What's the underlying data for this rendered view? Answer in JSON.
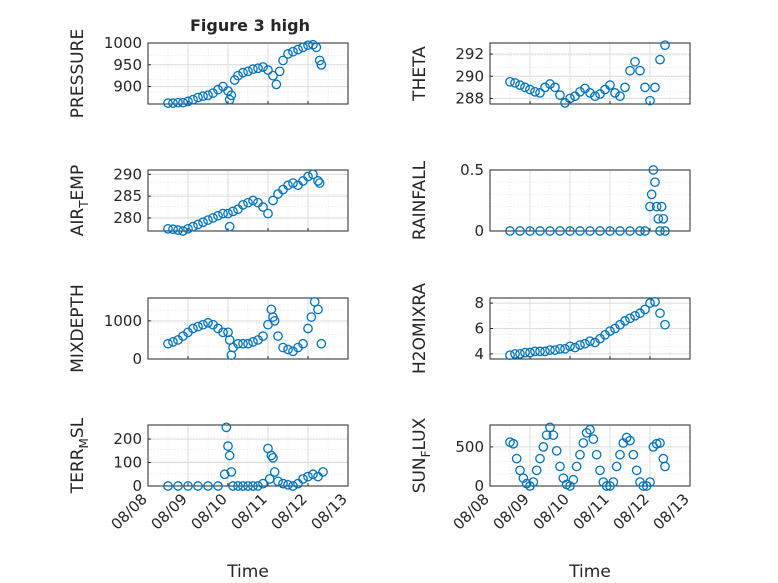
{
  "figure": {
    "title": "Figure 3 high"
  },
  "colors": {
    "marker": "#0072BD",
    "axis": "#262626",
    "grid": "#dcdcdc"
  },
  "chart_data": [
    {
      "id": "pressure",
      "type": "scatter",
      "title": "Figure 3 high",
      "xlabel": "",
      "ylabel": "PRESSURE",
      "xlim": [
        "08/08",
        "08/13"
      ],
      "ylim": [
        860,
        1000
      ],
      "yticks": [
        900,
        950,
        1000
      ],
      "xticks": [
        "08/08",
        "08/09",
        "08/10",
        "08/11",
        "08/12",
        "08/13"
      ],
      "show_xticklabels": false,
      "grid": true,
      "series": [
        {
          "x": [
            "08/08 12:00",
            "08/08 15:00",
            "08/08 18:00",
            "08/08 21:00",
            "08/09 00:00",
            "08/09 03:00",
            "08/09 06:00",
            "08/09 09:00",
            "08/09 12:00",
            "08/09 15:00",
            "08/09 18:00",
            "08/09 21:00",
            "08/10 00:00",
            "08/10 01:00",
            "08/10 02:00",
            "08/10 04:00",
            "08/10 06:00",
            "08/10 09:00",
            "08/10 12:00",
            "08/10 15:00",
            "08/10 18:00",
            "08/10 21:00",
            "08/11 00:00",
            "08/11 03:00",
            "08/11 05:00",
            "08/11 07:00",
            "08/11 09:00",
            "08/11 12:00",
            "08/11 15:00",
            "08/11 18:00",
            "08/11 21:00",
            "08/12 00:00",
            "08/12 03:00",
            "08/12 05:00",
            "08/12 07:00",
            "08/12 08:00"
          ],
          "y": [
            862,
            862,
            863,
            863,
            866,
            870,
            875,
            878,
            880,
            885,
            893,
            900,
            890,
            870,
            880,
            915,
            925,
            932,
            935,
            940,
            942,
            945,
            938,
            925,
            905,
            935,
            960,
            975,
            980,
            985,
            990,
            995,
            996,
            990,
            960,
            950
          ]
        }
      ]
    },
    {
      "id": "theta",
      "type": "scatter",
      "title": "",
      "xlabel": "",
      "ylabel": "THETA",
      "xlim": [
        "08/08",
        "08/13"
      ],
      "ylim": [
        287.5,
        293
      ],
      "yticks": [
        288,
        290,
        292
      ],
      "xticks": [
        "08/08",
        "08/09",
        "08/10",
        "08/11",
        "08/12",
        "08/13"
      ],
      "show_xticklabels": false,
      "grid": true,
      "series": [
        {
          "x": [
            "08/08 12:00",
            "08/08 15:00",
            "08/08 18:00",
            "08/08 21:00",
            "08/09 00:00",
            "08/09 03:00",
            "08/09 06:00",
            "08/09 09:00",
            "08/09 12:00",
            "08/09 15:00",
            "08/09 18:00",
            "08/09 21:00",
            "08/10 00:00",
            "08/10 03:00",
            "08/10 06:00",
            "08/10 09:00",
            "08/10 12:00",
            "08/10 15:00",
            "08/10 18:00",
            "08/10 21:00",
            "08/11 00:00",
            "08/11 03:00",
            "08/11 06:00",
            "08/11 09:00",
            "08/11 12:00",
            "08/11 15:00",
            "08/11 18:00",
            "08/11 21:00",
            "08/12 00:00",
            "08/12 03:00",
            "08/12 06:00",
            "08/12 09:00"
          ],
          "y": [
            289.5,
            289.4,
            289.2,
            289.0,
            288.8,
            288.6,
            288.5,
            289.0,
            289.3,
            289.0,
            288.3,
            287.6,
            288.0,
            288.2,
            288.6,
            288.9,
            288.5,
            288.2,
            288.4,
            288.8,
            289.2,
            288.5,
            288.2,
            289.0,
            290.5,
            291.3,
            290.5,
            289.0,
            287.8,
            289.0,
            291.5,
            292.8
          ]
        }
      ]
    },
    {
      "id": "air_temp",
      "type": "scatter",
      "title": "",
      "xlabel": "",
      "ylabel": "AIR_TEMP",
      "ylabel_display": [
        "AIR",
        "T",
        "EMP"
      ],
      "xlim": [
        "08/08",
        "08/13"
      ],
      "ylim": [
        277,
        291
      ],
      "yticks": [
        280,
        285,
        290
      ],
      "xticks": [
        "08/08",
        "08/09",
        "08/10",
        "08/11",
        "08/12",
        "08/13"
      ],
      "show_xticklabels": false,
      "grid": true,
      "series": [
        {
          "x": [
            "08/08 12:00",
            "08/08 15:00",
            "08/08 18:00",
            "08/08 21:00",
            "08/09 00:00",
            "08/09 03:00",
            "08/09 06:00",
            "08/09 09:00",
            "08/09 12:00",
            "08/09 15:00",
            "08/09 18:00",
            "08/09 21:00",
            "08/10 00:00",
            "08/10 01:00",
            "08/10 03:00",
            "08/10 06:00",
            "08/10 09:00",
            "08/10 12:00",
            "08/10 15:00",
            "08/10 18:00",
            "08/10 21:00",
            "08/11 00:00",
            "08/11 03:00",
            "08/11 06:00",
            "08/11 09:00",
            "08/11 12:00",
            "08/11 15:00",
            "08/11 18:00",
            "08/11 21:00",
            "08/12 00:00",
            "08/12 03:00",
            "08/12 06:00",
            "08/12 07:00"
          ],
          "y": [
            277.5,
            277.4,
            277.2,
            277.0,
            277.5,
            278.0,
            278.5,
            279.0,
            279.5,
            280.0,
            280.5,
            281.0,
            281.0,
            278.0,
            281.5,
            282.0,
            283.0,
            283.5,
            284.0,
            283.5,
            282.5,
            281.0,
            284.0,
            285.5,
            286.5,
            287.5,
            288.0,
            287.5,
            288.5,
            289.5,
            290.0,
            288.5,
            288.0
          ]
        }
      ]
    },
    {
      "id": "rainfall",
      "type": "scatter",
      "title": "",
      "xlabel": "",
      "ylabel": "RAINFALL",
      "xlim": [
        "08/08",
        "08/13"
      ],
      "ylim": [
        0,
        0.5
      ],
      "yticks": [
        0,
        0.5
      ],
      "xticks": [
        "08/08",
        "08/09",
        "08/10",
        "08/11",
        "08/12",
        "08/13"
      ],
      "show_xticklabels": false,
      "grid": true,
      "series": [
        {
          "x": [
            "08/08 12:00",
            "08/08 18:00",
            "08/09 00:00",
            "08/09 06:00",
            "08/09 12:00",
            "08/09 18:00",
            "08/10 00:00",
            "08/10 06:00",
            "08/10 12:00",
            "08/10 18:00",
            "08/11 00:00",
            "08/11 06:00",
            "08/11 12:00",
            "08/11 18:00",
            "08/11 21:00",
            "08/12 00:00",
            "08/12 01:00",
            "08/12 02:00",
            "08/12 03:00",
            "08/12 04:00",
            "08/12 05:00",
            "08/12 06:00",
            "08/12 07:00",
            "08/12 08:00",
            "08/12 09:00"
          ],
          "y": [
            0,
            0,
            0,
            0,
            0,
            0,
            0,
            0,
            0,
            0,
            0,
            0,
            0,
            0,
            0,
            0.2,
            0.3,
            0.5,
            0.4,
            0.2,
            0.1,
            0,
            0.2,
            0.1,
            0
          ]
        }
      ]
    },
    {
      "id": "mixdepth",
      "type": "scatter",
      "title": "",
      "xlabel": "",
      "ylabel": "MIXDEPTH",
      "xlim": [
        "08/08",
        "08/13"
      ],
      "ylim": [
        0,
        1600
      ],
      "yticks": [
        0,
        1000
      ],
      "xticks": [
        "08/08",
        "08/09",
        "08/10",
        "08/11",
        "08/12",
        "08/13"
      ],
      "show_xticklabels": false,
      "grid": true,
      "series": [
        {
          "x": [
            "08/08 12:00",
            "08/08 15:00",
            "08/08 18:00",
            "08/08 21:00",
            "08/09 00:00",
            "08/09 03:00",
            "08/09 06:00",
            "08/09 09:00",
            "08/09 12:00",
            "08/09 15:00",
            "08/09 18:00",
            "08/09 21:00",
            "08/10 00:00",
            "08/10 01:00",
            "08/10 02:00",
            "08/10 03:00",
            "08/10 06:00",
            "08/10 09:00",
            "08/10 12:00",
            "08/10 15:00",
            "08/10 18:00",
            "08/10 21:00",
            "08/11 00:00",
            "08/11 02:00",
            "08/11 03:00",
            "08/11 04:00",
            "08/11 06:00",
            "08/11 09:00",
            "08/11 12:00",
            "08/11 15:00",
            "08/11 18:00",
            "08/11 21:00",
            "08/12 00:00",
            "08/12 02:00",
            "08/12 04:00",
            "08/12 06:00",
            "08/12 08:00"
          ],
          "y": [
            400,
            450,
            500,
            600,
            700,
            800,
            850,
            900,
            950,
            900,
            800,
            700,
            700,
            500,
            100,
            300,
            400,
            400,
            400,
            450,
            500,
            600,
            900,
            1300,
            1100,
            1000,
            600,
            300,
            250,
            200,
            300,
            400,
            800,
            1100,
            1500,
            1300,
            400
          ]
        }
      ]
    },
    {
      "id": "h2omixra",
      "type": "scatter",
      "title": "",
      "xlabel": "",
      "ylabel": "H2OMIXRA",
      "xlim": [
        "08/08",
        "08/13"
      ],
      "ylim": [
        3.6,
        8.4
      ],
      "yticks": [
        4,
        6,
        8
      ],
      "xticks": [
        "08/08",
        "08/09",
        "08/10",
        "08/11",
        "08/12",
        "08/13"
      ],
      "show_xticklabels": false,
      "grid": true,
      "series": [
        {
          "x": [
            "08/08 12:00",
            "08/08 15:00",
            "08/08 18:00",
            "08/08 21:00",
            "08/09 00:00",
            "08/09 03:00",
            "08/09 06:00",
            "08/09 09:00",
            "08/09 12:00",
            "08/09 15:00",
            "08/09 18:00",
            "08/09 21:00",
            "08/10 00:00",
            "08/10 03:00",
            "08/10 06:00",
            "08/10 09:00",
            "08/10 12:00",
            "08/10 15:00",
            "08/10 18:00",
            "08/10 21:00",
            "08/11 00:00",
            "08/11 03:00",
            "08/11 06:00",
            "08/11 09:00",
            "08/11 12:00",
            "08/11 15:00",
            "08/11 18:00",
            "08/11 21:00",
            "08/12 00:00",
            "08/12 03:00",
            "08/12 06:00",
            "08/12 09:00"
          ],
          "y": [
            3.9,
            4.0,
            4.0,
            4.1,
            4.1,
            4.2,
            4.2,
            4.2,
            4.3,
            4.3,
            4.4,
            4.4,
            4.6,
            4.5,
            4.7,
            4.8,
            5.0,
            4.9,
            5.2,
            5.5,
            5.8,
            6.0,
            6.3,
            6.6,
            6.8,
            7.0,
            7.2,
            7.5,
            8.0,
            8.1,
            7.2,
            6.3
          ]
        }
      ]
    },
    {
      "id": "terr_msl",
      "type": "scatter",
      "title": "",
      "xlabel": "Time",
      "ylabel": "TERR_MSL",
      "ylabel_display": [
        "TERR",
        "M",
        "SL"
      ],
      "xlim": [
        "08/08",
        "08/13"
      ],
      "ylim": [
        0,
        260
      ],
      "yticks": [
        0,
        100,
        200
      ],
      "xticks": [
        "08/08",
        "08/09",
        "08/10",
        "08/11",
        "08/12",
        "08/13"
      ],
      "show_xticklabels": true,
      "grid": true,
      "series": [
        {
          "x": [
            "08/08 12:00",
            "08/08 18:00",
            "08/09 00:00",
            "08/09 06:00",
            "08/09 12:00",
            "08/09 18:00",
            "08/09 22:00",
            "08/09 23:00",
            "08/10 00:00",
            "08/10 01:00",
            "08/10 02:00",
            "08/10 03:00",
            "08/10 06:00",
            "08/10 09:00",
            "08/10 12:00",
            "08/10 15:00",
            "08/10 18:00",
            "08/10 21:00",
            "08/11 00:00",
            "08/11 01:00",
            "08/11 02:00",
            "08/11 03:00",
            "08/11 04:00",
            "08/11 06:00",
            "08/11 09:00",
            "08/11 12:00",
            "08/11 15:00",
            "08/11 18:00",
            "08/11 21:00",
            "08/12 00:00",
            "08/12 03:00",
            "08/12 06:00",
            "08/12 09:00"
          ],
          "y": [
            0,
            0,
            0,
            0,
            0,
            0,
            50,
            250,
            170,
            130,
            60,
            0,
            0,
            0,
            0,
            0,
            0,
            10,
            160,
            30,
            130,
            120,
            60,
            20,
            10,
            5,
            0,
            10,
            30,
            40,
            50,
            40,
            60
          ]
        }
      ]
    },
    {
      "id": "sun_flux",
      "type": "scatter",
      "title": "",
      "xlabel": "Time",
      "ylabel": "SUN_FLUX",
      "ylabel_display": [
        "SUN",
        "F",
        "LUX"
      ],
      "xlim": [
        "08/08",
        "08/13"
      ],
      "ylim": [
        0,
        780
      ],
      "yticks": [
        0,
        500
      ],
      "xticks": [
        "08/08",
        "08/09",
        "08/10",
        "08/11",
        "08/12",
        "08/13"
      ],
      "show_xticklabels": true,
      "grid": true,
      "series": [
        {
          "x": [
            "08/08 12:00",
            "08/08 14:00",
            "08/08 16:00",
            "08/08 18:00",
            "08/08 20:00",
            "08/08 22:00",
            "08/09 00:00",
            "08/09 02:00",
            "08/09 04:00",
            "08/09 06:00",
            "08/09 08:00",
            "08/09 10:00",
            "08/09 12:00",
            "08/09 14:00",
            "08/09 16:00",
            "08/09 18:00",
            "08/09 20:00",
            "08/09 22:00",
            "08/10 00:00",
            "08/10 02:00",
            "08/10 04:00",
            "08/10 06:00",
            "08/10 08:00",
            "08/10 10:00",
            "08/10 12:00",
            "08/10 14:00",
            "08/10 16:00",
            "08/10 18:00",
            "08/10 20:00",
            "08/10 22:00",
            "08/11 00:00",
            "08/11 02:00",
            "08/11 04:00",
            "08/11 06:00",
            "08/11 08:00",
            "08/11 10:00",
            "08/11 12:00",
            "08/11 14:00",
            "08/11 16:00",
            "08/11 18:00",
            "08/11 20:00",
            "08/11 22:00",
            "08/12 00:00",
            "08/12 02:00",
            "08/12 04:00",
            "08/12 06:00",
            "08/12 08:00",
            "08/12 09:00"
          ],
          "y": [
            560,
            540,
            350,
            200,
            100,
            30,
            0,
            50,
            200,
            350,
            500,
            650,
            750,
            650,
            450,
            250,
            100,
            20,
            0,
            80,
            250,
            400,
            550,
            680,
            720,
            600,
            400,
            200,
            50,
            0,
            0,
            50,
            250,
            400,
            550,
            620,
            580,
            400,
            200,
            50,
            0,
            0,
            50,
            500,
            540,
            550,
            350,
            250
          ]
        }
      ]
    }
  ]
}
